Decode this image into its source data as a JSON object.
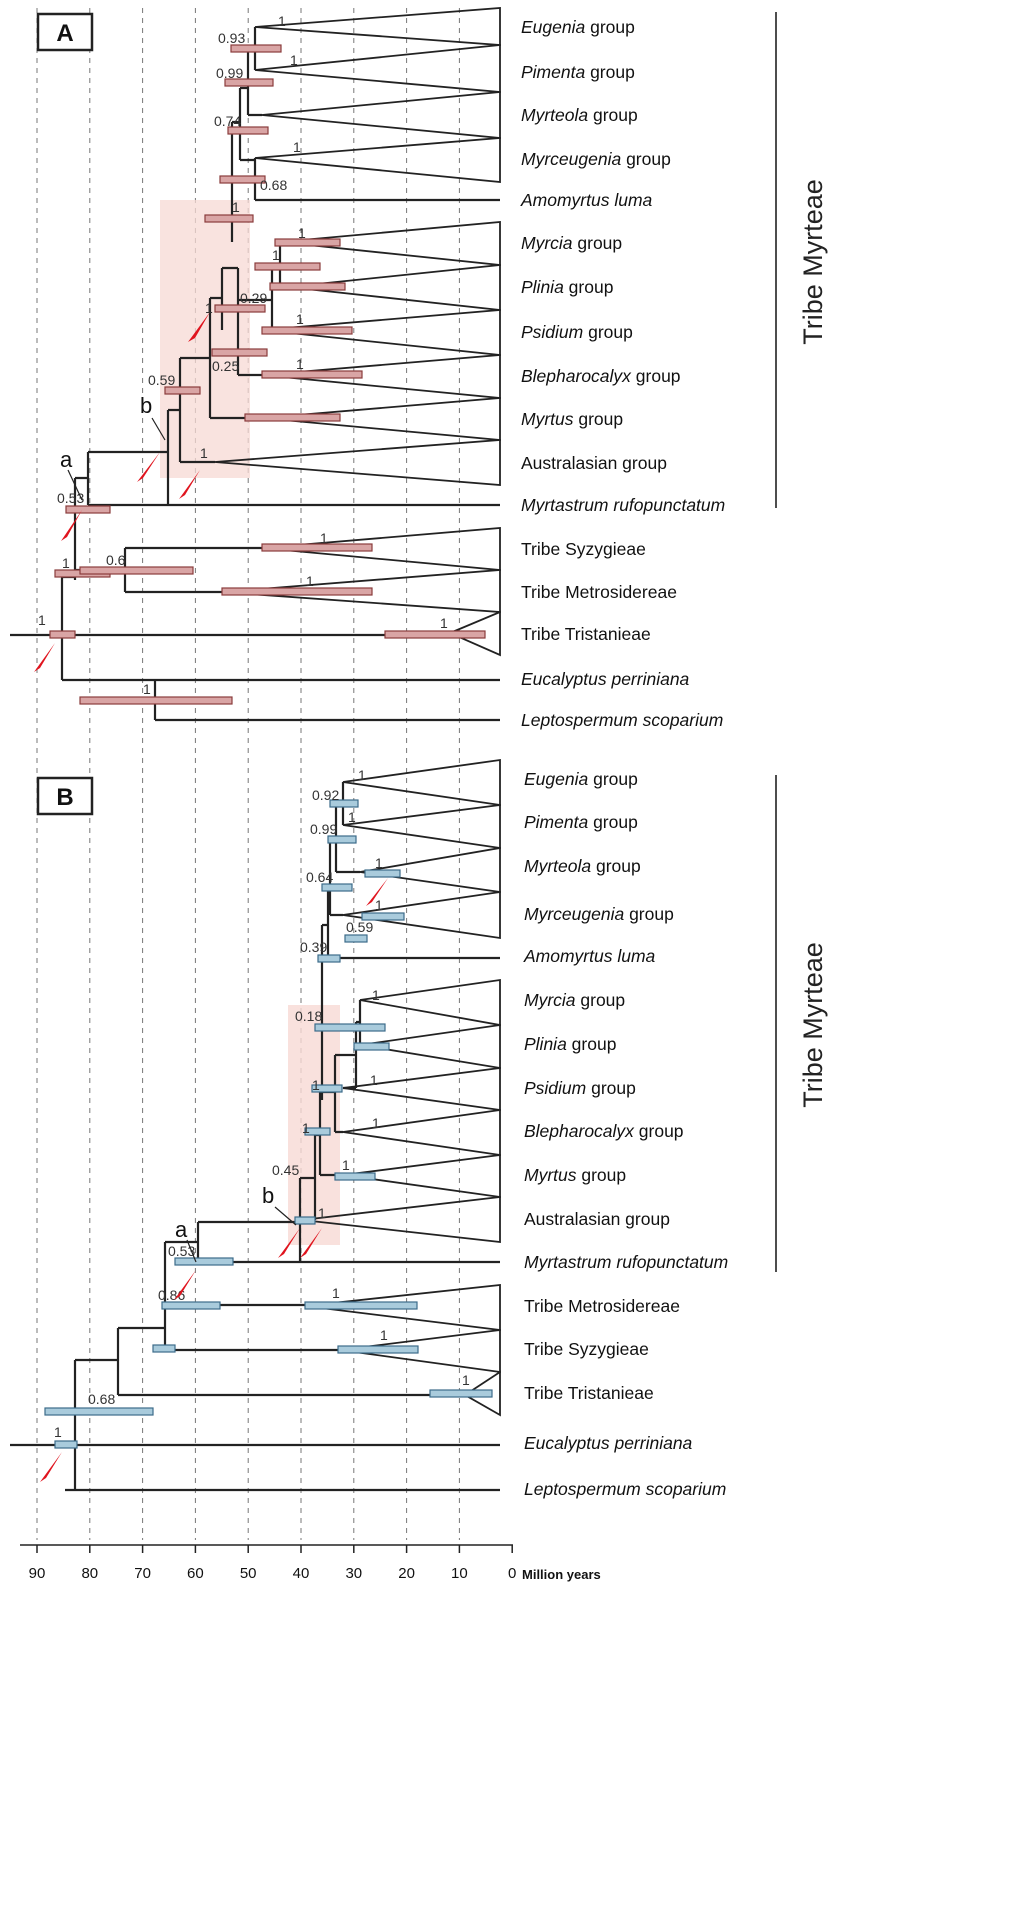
{
  "panels": [
    {
      "letter": "A",
      "tribe_label": "Tribe Myrteae",
      "tips": [
        {
          "it": "Eugenia",
          "rest": " group"
        },
        {
          "it": "Pimenta",
          "rest": " group"
        },
        {
          "it": "Myrteola",
          "rest": " group"
        },
        {
          "it": "Myrceugenia",
          "rest": " group"
        },
        {
          "it": "Amomyrtus luma",
          "rest": ""
        },
        {
          "it": "Myrcia",
          "rest": " group"
        },
        {
          "it": "Plinia",
          "rest": " group"
        },
        {
          "it": "Psidium",
          "rest": " group"
        },
        {
          "it": "Blepharocalyx",
          "rest": " group"
        },
        {
          "it": "Myrtus",
          "rest": " group"
        },
        {
          "it": "",
          "rest": "Australasian group"
        },
        {
          "it": "Myrtastrum rufopunctatum",
          "rest": ""
        },
        {
          "it": "",
          "rest": "Tribe Syzygieae"
        },
        {
          "it": "",
          "rest": "Tribe Metrosidereae"
        },
        {
          "it": "",
          "rest": "Tribe Tristanieae"
        },
        {
          "it": "Eucalyptus perriniana",
          "rest": ""
        },
        {
          "it": "Leptospermum scoparium",
          "rest": ""
        }
      ],
      "support_values": [
        "0.93",
        "1",
        "0.99",
        "1",
        "0.74",
        "1",
        "0.68",
        "1",
        "1",
        "1",
        "0.29",
        "1",
        "0.25",
        "1",
        "0.59",
        "1",
        "1",
        "0.53",
        "1",
        "0.6",
        "1",
        "1",
        "1",
        "1",
        "1"
      ],
      "node_labels": [
        "a",
        "b"
      ]
    },
    {
      "letter": "B",
      "tribe_label": "Tribe Myrteae",
      "tips": [
        {
          "it": "Eugenia",
          "rest": " group"
        },
        {
          "it": "Pimenta",
          "rest": " group"
        },
        {
          "it": "Myrteola",
          "rest": " group"
        },
        {
          "it": "Myrceugenia",
          "rest": " group"
        },
        {
          "it": "Amomyrtus luma",
          "rest": ""
        },
        {
          "it": "Myrcia",
          "rest": " group"
        },
        {
          "it": "Plinia",
          "rest": " group"
        },
        {
          "it": "Psidium",
          "rest": " group"
        },
        {
          "it": "Blepharocalyx",
          "rest": " group"
        },
        {
          "it": "Myrtus",
          "rest": " group"
        },
        {
          "it": "",
          "rest": "Australasian group"
        },
        {
          "it": "Myrtastrum rufopunctatum",
          "rest": ""
        },
        {
          "it": "",
          "rest": "Tribe Metrosidereae"
        },
        {
          "it": "",
          "rest": "Tribe Syzygieae"
        },
        {
          "it": "",
          "rest": "Tribe Tristanieae"
        },
        {
          "it": "Eucalyptus perriniana",
          "rest": ""
        },
        {
          "it": "Leptospermum scoparium",
          "rest": ""
        }
      ],
      "support_values": [
        "1",
        "0.92",
        "1",
        "0.99",
        "1",
        "0.64",
        "1",
        "0.59",
        "0.39",
        "0.18",
        "1",
        "1",
        "1",
        "1",
        "1",
        "0.45",
        "1",
        "1",
        "0.53",
        "0.86",
        "1",
        "1",
        "1",
        "0.68",
        "1"
      ],
      "node_labels": [
        "a",
        "b"
      ]
    }
  ],
  "axis": {
    "ticks": [
      "90",
      "80",
      "70",
      "60",
      "50",
      "40",
      "30",
      "20",
      "10",
      "0"
    ],
    "unit": "Million years"
  }
}
